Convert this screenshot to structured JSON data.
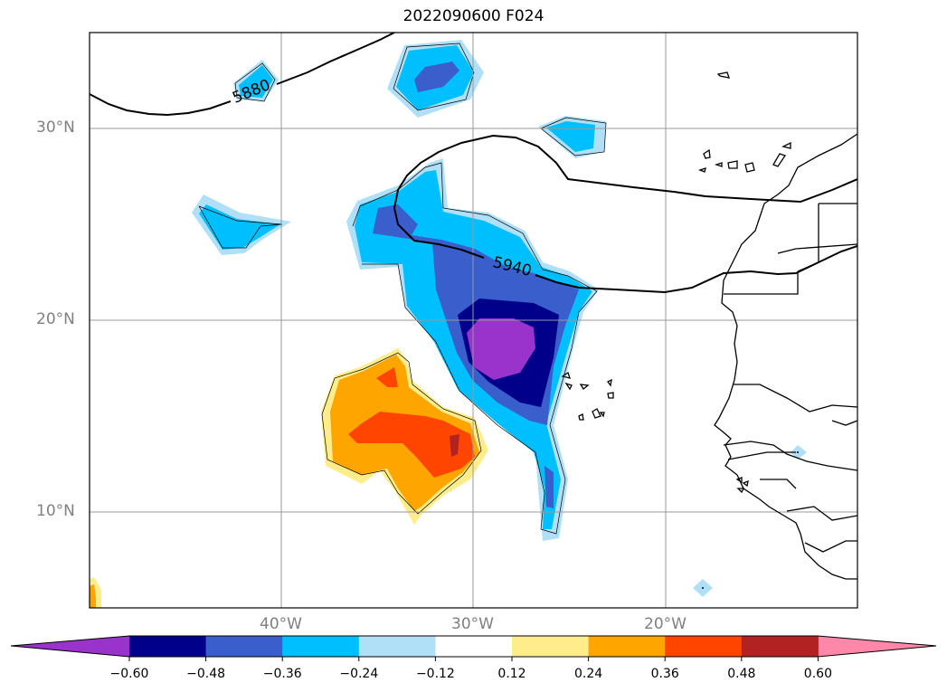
{
  "title": "2022090600 F024",
  "map": {
    "lat_labels": [
      "30°N",
      "20°N",
      "10°N"
    ],
    "lon_labels": [
      "40°W",
      "30°W",
      "20°W"
    ],
    "contour_labels": [
      "5880",
      "5940"
    ],
    "extent": {
      "lon": [
        -50,
        -10
      ],
      "lat": [
        5,
        35
      ]
    }
  },
  "colorbar": {
    "ticks": [
      "−0.60",
      "−0.48",
      "−0.36",
      "−0.24",
      "−0.12",
      "0.12",
      "0.24",
      "0.36",
      "0.48",
      "0.60"
    ],
    "colors": [
      "#9933cc",
      "#00008b",
      "#3a5fcd",
      "#00bfff",
      "#b0e0f8",
      "#ffffff",
      "#ffec8b",
      "#ffa500",
      "#ff4500",
      "#b22222",
      "#ff88aa"
    ]
  }
}
